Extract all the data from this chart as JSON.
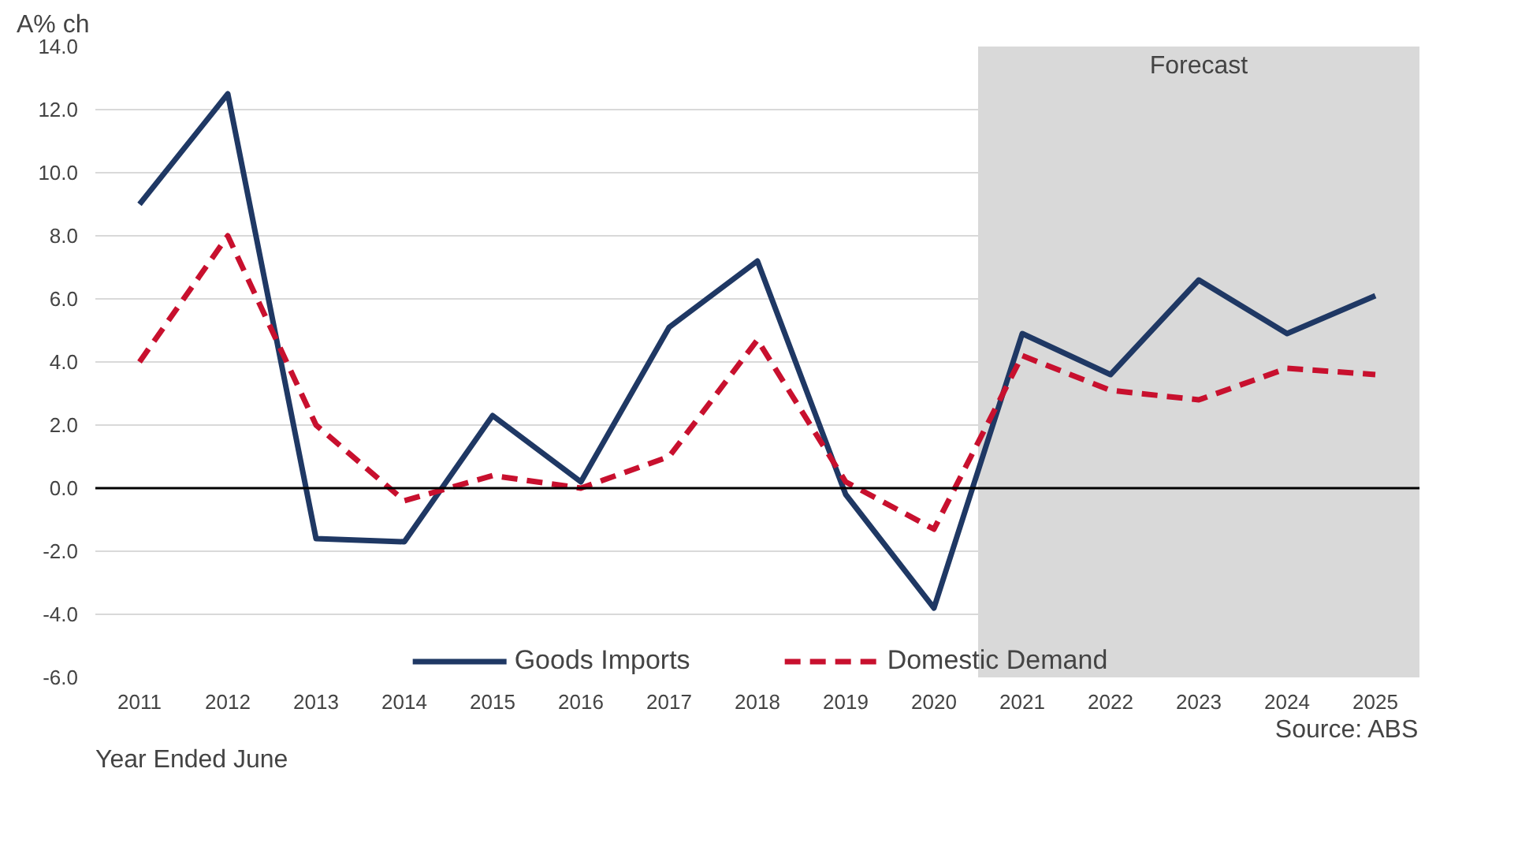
{
  "chart_data": {
    "type": "line",
    "ylabel": "A% ch",
    "xlabel": "Year Ended June",
    "x": [
      2011,
      2012,
      2013,
      2014,
      2015,
      2016,
      2017,
      2018,
      2019,
      2020,
      2021,
      2022,
      2023,
      2024,
      2025
    ],
    "xlim": [
      2010.5,
      2025.5
    ],
    "xticks": [
      2011,
      2012,
      2013,
      2014,
      2015,
      2016,
      2017,
      2018,
      2019,
      2020,
      2021,
      2022,
      2023,
      2024,
      2025
    ],
    "ylim": [
      -6,
      14
    ],
    "yticks": [
      {
        "value": -6,
        "label": "-6.0"
      },
      {
        "value": -4,
        "label": "-4.0"
      },
      {
        "value": -2,
        "label": "-2.0"
      },
      {
        "value": 0,
        "label": "0.0"
      },
      {
        "value": 2,
        "label": "2.0"
      },
      {
        "value": 4,
        "label": "4.0"
      },
      {
        "value": 6,
        "label": "6.0"
      },
      {
        "value": 8,
        "label": "8.0"
      },
      {
        "value": 10,
        "label": "10.0"
      },
      {
        "value": 12,
        "label": "12.0"
      },
      {
        "value": 14,
        "label": "14.0"
      }
    ],
    "series": [
      {
        "name": "Goods Imports",
        "color": "#1f3864",
        "line_style": "solid",
        "values": [
          9.0,
          12.5,
          -1.6,
          -1.7,
          2.3,
          0.2,
          5.1,
          7.2,
          -0.2,
          -3.8,
          4.9,
          3.6,
          6.6,
          4.9,
          6.1
        ]
      },
      {
        "name": "Domestic Demand",
        "color": "#c8102e",
        "line_style": "dashed",
        "values": [
          4.0,
          8.0,
          2.0,
          -0.4,
          0.4,
          0.0,
          1.0,
          4.7,
          0.2,
          -1.3,
          4.2,
          3.1,
          2.8,
          3.8,
          3.6
        ]
      }
    ],
    "bands": [
      {
        "axis": "x",
        "from": 2020.5,
        "to": 2025.5,
        "label": "Forecast",
        "color": "#d9d9d9"
      }
    ],
    "ref_lines": [
      {
        "axis": "y",
        "value": 0,
        "color": "#000000"
      }
    ],
    "grid": "y",
    "legend": "bottom",
    "marker": "none",
    "annotations": [
      "Source: ABS"
    ]
  }
}
